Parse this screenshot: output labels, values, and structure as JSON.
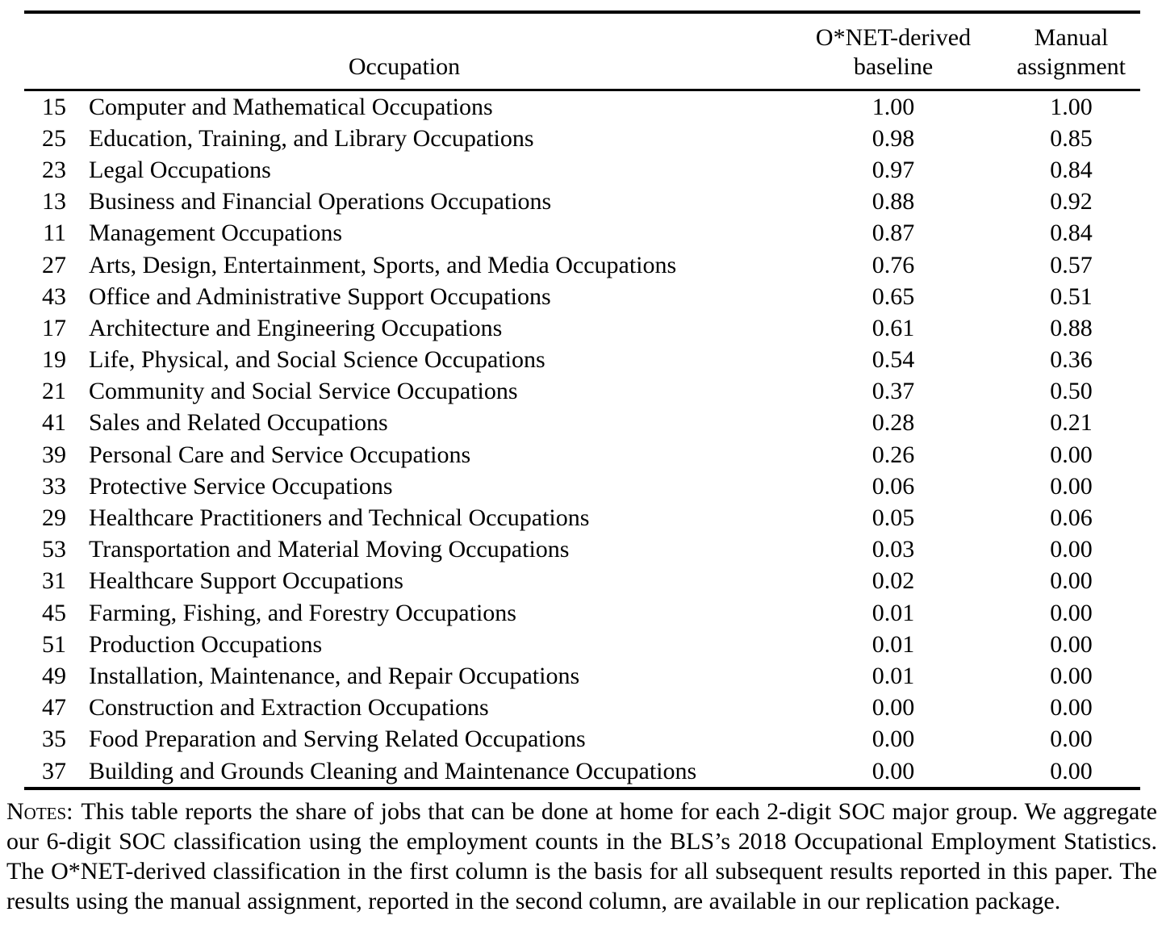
{
  "table": {
    "headers": {
      "occupation": "Occupation",
      "onet_line1": "O*NET-derived",
      "onet_line2": "baseline",
      "manual_line1": "Manual",
      "manual_line2": "assignment"
    },
    "rows": [
      {
        "code": "15",
        "occupation": "Computer and Mathematical Occupations",
        "onet": "1.00",
        "manual": "1.00"
      },
      {
        "code": "25",
        "occupation": "Education, Training, and Library Occupations",
        "onet": "0.98",
        "manual": "0.85"
      },
      {
        "code": "23",
        "occupation": "Legal Occupations",
        "onet": "0.97",
        "manual": "0.84"
      },
      {
        "code": "13",
        "occupation": "Business and Financial Operations Occupations",
        "onet": "0.88",
        "manual": "0.92"
      },
      {
        "code": "11",
        "occupation": "Management Occupations",
        "onet": "0.87",
        "manual": "0.84"
      },
      {
        "code": "27",
        "occupation": "Arts, Design, Entertainment, Sports, and Media Occupations",
        "onet": "0.76",
        "manual": "0.57"
      },
      {
        "code": "43",
        "occupation": "Office and Administrative Support Occupations",
        "onet": "0.65",
        "manual": "0.51"
      },
      {
        "code": "17",
        "occupation": "Architecture and Engineering Occupations",
        "onet": "0.61",
        "manual": "0.88"
      },
      {
        "code": "19",
        "occupation": "Life, Physical, and Social Science Occupations",
        "onet": "0.54",
        "manual": "0.36"
      },
      {
        "code": "21",
        "occupation": "Community and Social Service Occupations",
        "onet": "0.37",
        "manual": "0.50"
      },
      {
        "code": "41",
        "occupation": "Sales and Related Occupations",
        "onet": "0.28",
        "manual": "0.21"
      },
      {
        "code": "39",
        "occupation": "Personal Care and Service Occupations",
        "onet": "0.26",
        "manual": "0.00"
      },
      {
        "code": "33",
        "occupation": "Protective Service Occupations",
        "onet": "0.06",
        "manual": "0.00"
      },
      {
        "code": "29",
        "occupation": "Healthcare Practitioners and Technical Occupations",
        "onet": "0.05",
        "manual": "0.06"
      },
      {
        "code": "53",
        "occupation": "Transportation and Material Moving Occupations",
        "onet": "0.03",
        "manual": "0.00"
      },
      {
        "code": "31",
        "occupation": "Healthcare Support Occupations",
        "onet": "0.02",
        "manual": "0.00"
      },
      {
        "code": "45",
        "occupation": "Farming, Fishing, and Forestry Occupations",
        "onet": "0.01",
        "manual": "0.00"
      },
      {
        "code": "51",
        "occupation": "Production Occupations",
        "onet": "0.01",
        "manual": "0.00"
      },
      {
        "code": "49",
        "occupation": "Installation, Maintenance, and Repair Occupations",
        "onet": "0.01",
        "manual": "0.00"
      },
      {
        "code": "47",
        "occupation": "Construction and Extraction Occupations",
        "onet": "0.00",
        "manual": "0.00"
      },
      {
        "code": "35",
        "occupation": "Food Preparation and Serving Related Occupations",
        "onet": "0.00",
        "manual": "0.00"
      },
      {
        "code": "37",
        "occupation": "Building and Grounds Cleaning and Maintenance Occupations",
        "onet": "0.00",
        "manual": "0.00"
      }
    ]
  },
  "notes": {
    "label": "Notes:",
    "text": "This table reports the share of jobs that can be done at home for each 2-digit SOC major group. We aggregate our 6-digit SOC classification using the employment counts in the BLS’s 2018 Occupational Employment Statistics. The O*NET-derived classification in the first column is the basis for all subsequent results reported in this paper. The results using the manual assignment, reported in the second column, are available in our replication package."
  }
}
